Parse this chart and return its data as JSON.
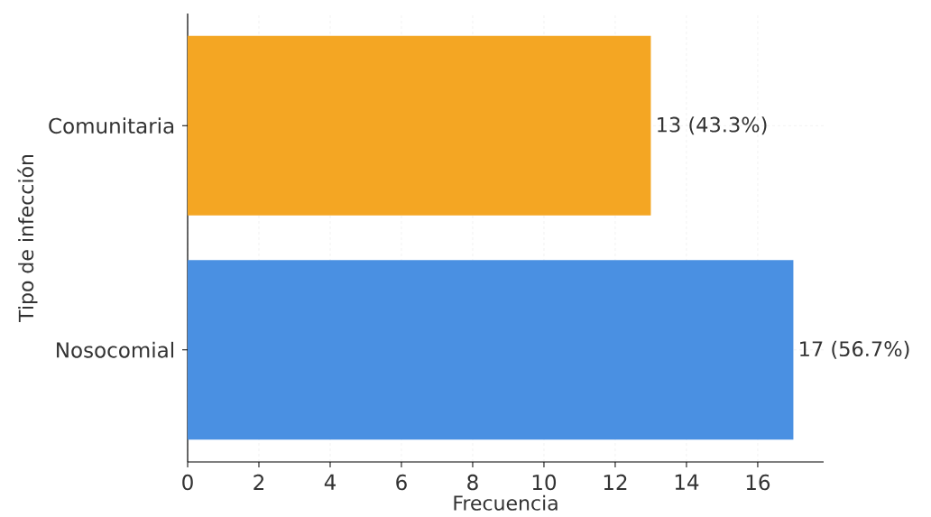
{
  "chart_data": {
    "type": "bar",
    "orientation": "horizontal",
    "xlabel": "Frecuencia",
    "ylabel": "Tipo de infección",
    "categories": [
      "Comunitaria",
      "Nosocomial"
    ],
    "values": [
      13,
      17
    ],
    "colors": [
      "#f4a623",
      "#4a90e2"
    ],
    "value_labels": [
      "13 (43.3%)",
      "17 (56.7%)"
    ],
    "xlim": [
      0,
      17.85
    ],
    "xticks": [
      0,
      2,
      4,
      6,
      8,
      10,
      12,
      14,
      16
    ],
    "grid": true
  }
}
